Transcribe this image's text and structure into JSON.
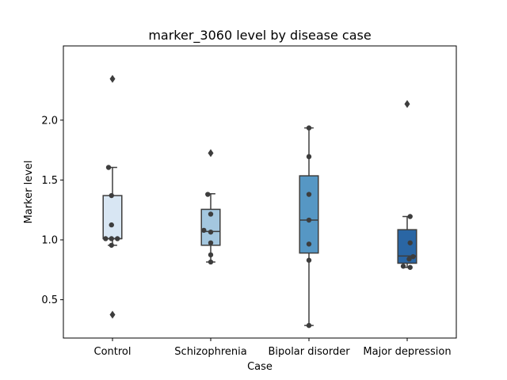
{
  "chart_data": {
    "type": "box",
    "title": "marker_3060 level by disease case",
    "xlabel": "Case",
    "ylabel": "Marker level",
    "ylim": [
      0.18,
      2.62
    ],
    "yticks": [
      0.5,
      1.0,
      1.5,
      2.0
    ],
    "ytick_labels": [
      "0.5",
      "1.0",
      "1.5",
      "2.0"
    ],
    "categories": [
      "Control",
      "Schizophrenia",
      "Bipolar disorder",
      "Major depression"
    ],
    "colors": [
      "#d8e6f3",
      "#a4c7df",
      "#5697c4",
      "#2a66a4"
    ],
    "boxes": [
      {
        "q1": 1.01,
        "median": 1.01,
        "q3": 1.37,
        "whisker_low": 0.955,
        "whisker_high": 1.605,
        "outliers": [
          2.345,
          0.375
        ]
      },
      {
        "q1": 0.955,
        "median": 1.07,
        "q3": 1.255,
        "whisker_low": 0.815,
        "whisker_high": 1.385,
        "outliers": [
          1.725
        ]
      },
      {
        "q1": 0.89,
        "median": 1.165,
        "q3": 1.535,
        "whisker_low": 0.285,
        "whisker_high": 1.935,
        "outliers": []
      },
      {
        "q1": 0.805,
        "median": 0.865,
        "q3": 1.085,
        "whisker_low": 0.77,
        "whisker_high": 1.195,
        "outliers": [
          2.135
        ]
      }
    ],
    "points": [
      [
        [
          -0.04,
          1.605
        ],
        [
          -0.01,
          1.37
        ],
        [
          -0.01,
          1.125
        ],
        [
          -0.07,
          1.01
        ],
        [
          -0.01,
          1.01
        ],
        [
          0.05,
          1.01
        ],
        [
          -0.01,
          0.955
        ]
      ],
      [
        [
          -0.03,
          1.38
        ],
        [
          0.0,
          1.215
        ],
        [
          -0.07,
          1.08
        ],
        [
          0.0,
          1.065
        ],
        [
          0.0,
          0.975
        ],
        [
          0.0,
          0.875
        ],
        [
          0.0,
          0.815
        ]
      ],
      [
        [
          0.0,
          1.935
        ],
        [
          0.0,
          1.695
        ],
        [
          0.0,
          1.38
        ],
        [
          0.0,
          1.165
        ],
        [
          0.0,
          0.965
        ],
        [
          0.0,
          0.83
        ],
        [
          0.0,
          0.285
        ]
      ],
      [
        [
          0.03,
          1.195
        ],
        [
          0.03,
          0.975
        ],
        [
          0.06,
          0.86
        ],
        [
          0.02,
          0.84
        ],
        [
          -0.04,
          0.78
        ],
        [
          0.03,
          0.77
        ]
      ]
    ]
  }
}
